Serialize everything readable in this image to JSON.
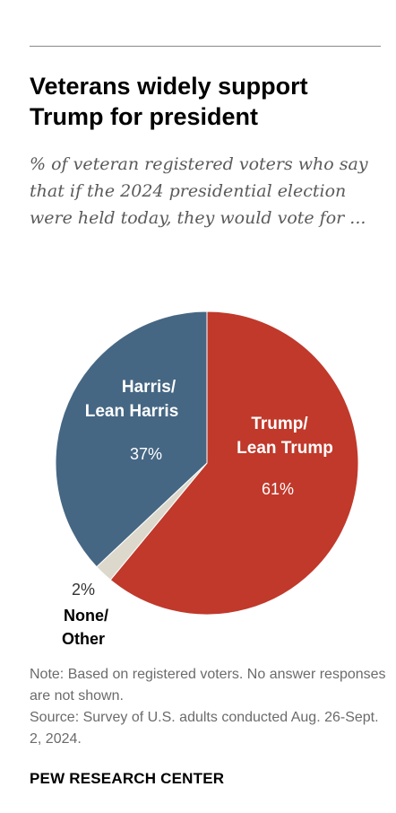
{
  "title": "Veterans widely support Trump for president",
  "subtitle": "% of veteran registered voters who say that if the 2024 presidential election were held today, they would vote for ...",
  "chart_data": {
    "type": "pie",
    "slices": [
      {
        "label_lines": [
          "Trump/",
          "Lean Trump"
        ],
        "value": 61,
        "value_label": "61%",
        "color": "#c0392b"
      },
      {
        "label_lines": [
          "None/",
          "Other"
        ],
        "value": 2,
        "value_label": "2%",
        "color": "#dcd8cc"
      },
      {
        "label_lines": [
          "Harris/",
          "Lean Harris"
        ],
        "value": 37,
        "value_label": "37%",
        "color": "#456783"
      }
    ]
  },
  "note": "Note: Based on registered voters. No answer responses are not shown.",
  "source": "Source: Survey of U.S. adults conducted Aug. 26-Sept. 2, 2024.",
  "brand": "PEW RESEARCH CENTER"
}
